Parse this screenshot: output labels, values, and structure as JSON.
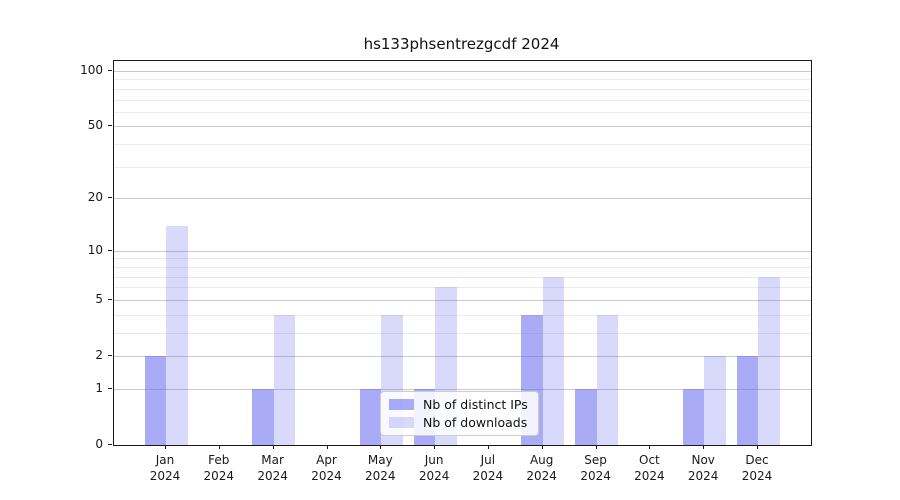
{
  "title": "hs133phsentrezgcdf 2024",
  "legend": {
    "items": [
      {
        "label": "Nb of distinct IPs",
        "color": "rgba(99,102,241,0.55)"
      },
      {
        "label": "Nb of downloads",
        "color": "rgba(99,102,241,0.25)"
      }
    ]
  },
  "chart_data": {
    "type": "bar",
    "title": "hs133phsentrezgcdf 2024",
    "categories": [
      "Jan",
      "Feb",
      "Mar",
      "Apr",
      "May",
      "Jun",
      "Jul",
      "Aug",
      "Sep",
      "Oct",
      "Nov",
      "Dec"
    ],
    "category_year": "2024",
    "series": [
      {
        "name": "Nb of distinct IPs",
        "color": "rgba(99,102,241,0.55)",
        "values": [
          2,
          0,
          1,
          0,
          1,
          1,
          0,
          4,
          1,
          0,
          1,
          2
        ]
      },
      {
        "name": "Nb of downloads",
        "color": "rgba(99,102,241,0.25)",
        "values": [
          14,
          0,
          4,
          0,
          4,
          6,
          0,
          7,
          4,
          0,
          2,
          7
        ]
      }
    ],
    "xlabel": "",
    "ylabel": "",
    "y_scale": "log1p",
    "ylim": [
      0,
      113
    ],
    "y_major_ticks": [
      100,
      50,
      20,
      10,
      5,
      2,
      1,
      0
    ],
    "y_minor_gridlines": [
      3,
      4,
      6,
      7,
      8,
      9,
      30,
      40,
      60,
      70,
      80,
      90
    ],
    "grid": true,
    "legend_position": "lower center",
    "colors": {
      "base_accent": "#6366f1",
      "grid_major": "#c9c9c9",
      "grid_minor": "#ebebeb",
      "spine": "#1a1a1a"
    }
  }
}
